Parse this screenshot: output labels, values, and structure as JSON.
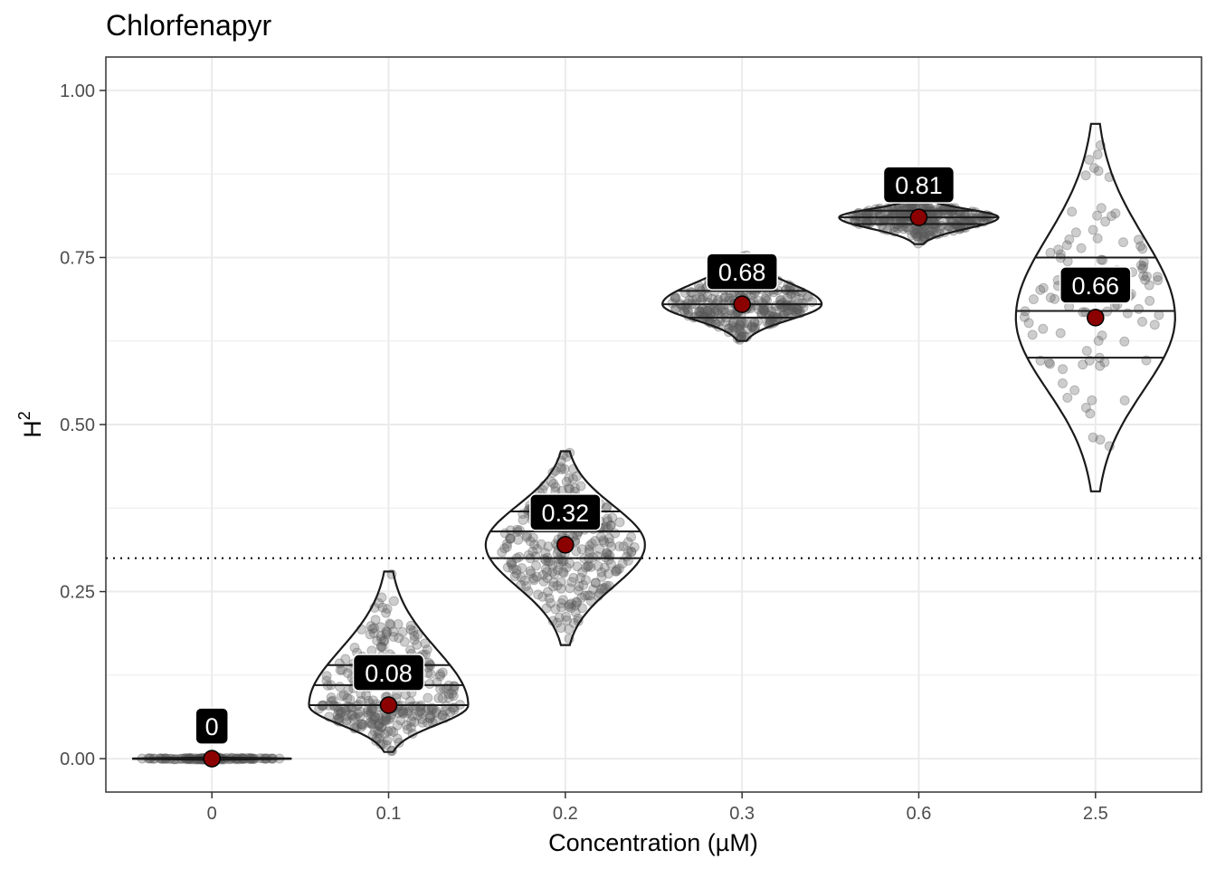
{
  "chart_data": {
    "type": "violin",
    "title": "Chlorfenapyr",
    "xlabel": "Concentration (µM)",
    "ylabel": "H",
    "ylabel_superscript": "2",
    "categories": [
      "0",
      "0.1",
      "0.2",
      "0.3",
      "0.6",
      "2.5"
    ],
    "ylim": [
      -0.05,
      1.05
    ],
    "yticks": [
      0.0,
      0.25,
      0.5,
      0.75,
      1.0
    ],
    "ytick_labels": [
      "0.00",
      "0.25",
      "0.50",
      "0.75",
      "1.00"
    ],
    "threshold": 0.3,
    "grid": true,
    "colors": {
      "point": "#8B0000",
      "violin_stroke": "#1a1a1a",
      "jitter": "#595959",
      "grid": "#ebebeb",
      "threshold": "#000000",
      "label_bg": "#000000",
      "label_text": "#ffffff"
    },
    "groups": [
      {
        "category": "0",
        "mean": 0.0,
        "label": "0",
        "quantiles": [
          0.0,
          0.0,
          0.0
        ],
        "min": -0.002,
        "max": 0.002,
        "n": 120
      },
      {
        "category": "0.1",
        "mean": 0.08,
        "label": "0.08",
        "quantiles": [
          0.08,
          0.11,
          0.14
        ],
        "min": 0.01,
        "max": 0.28,
        "n": 300
      },
      {
        "category": "0.2",
        "mean": 0.32,
        "label": "0.32",
        "quantiles": [
          0.3,
          0.34,
          0.37
        ],
        "min": 0.17,
        "max": 0.46,
        "n": 300
      },
      {
        "category": "0.3",
        "mean": 0.68,
        "label": "0.68",
        "quantiles": [
          0.66,
          0.68,
          0.7
        ],
        "min": 0.625,
        "max": 0.755,
        "n": 300
      },
      {
        "category": "0.6",
        "mean": 0.81,
        "label": "0.81",
        "quantiles": [
          0.8,
          0.81,
          0.82
        ],
        "min": 0.77,
        "max": 0.84,
        "n": 300
      },
      {
        "category": "2.5",
        "mean": 0.66,
        "label": "0.66",
        "quantiles": [
          0.6,
          0.67,
          0.75
        ],
        "min": 0.4,
        "max": 0.95,
        "n": 100
      }
    ]
  }
}
